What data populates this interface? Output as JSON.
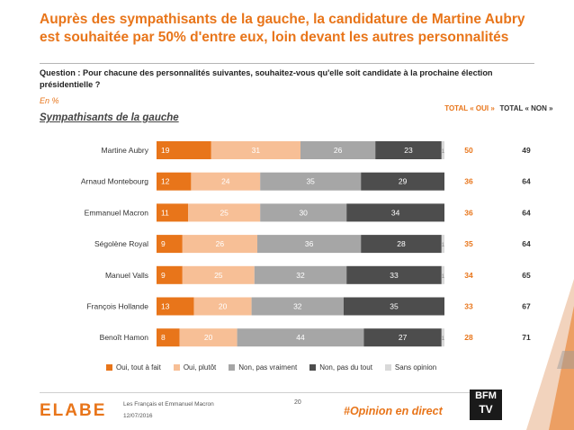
{
  "header": {
    "title": "Auprès des sympathisants de la gauche, la candidature de Martine Aubry est souhaitée par 50% d'entre eux, loin devant les autres personnalités",
    "question": "Question : Pour chacune des personnalités suivantes, souhaitez-vous qu'elle soit candidate à la prochaine élection présidentielle ?",
    "unit": "En %",
    "subtitle": "Sympathisants de la gauche"
  },
  "columns": {
    "oui_label": "TOTAL « OUI »",
    "non_label": "TOTAL « NON »"
  },
  "chart_data": {
    "type": "bar",
    "orientation": "horizontal-stacked-100",
    "categories": [
      "Martine Aubry",
      "Arnaud Montebourg",
      "Emmanuel Macron",
      "Ségolène Royal",
      "Manuel Valls",
      "François Hollande",
      "Benoît Hamon"
    ],
    "series": [
      {
        "name": "Oui, tout à fait",
        "color": "#e8751a",
        "values": [
          19,
          12,
          11,
          9,
          9,
          13,
          8
        ]
      },
      {
        "name": "Oui, plutôt",
        "color": "#f7bf96",
        "values": [
          31,
          24,
          25,
          26,
          25,
          20,
          20
        ]
      },
      {
        "name": "Non, pas vraiment",
        "color": "#a6a6a6",
        "values": [
          26,
          35,
          30,
          36,
          32,
          32,
          44
        ]
      },
      {
        "name": "Non, pas du tout",
        "color": "#4d4d4d",
        "values": [
          23,
          29,
          34,
          28,
          33,
          35,
          27
        ]
      },
      {
        "name": "Sans opinion",
        "color": "#d9d9d9",
        "values": [
          1,
          0,
          0,
          1,
          1,
          0,
          1
        ]
      }
    ],
    "total_oui": [
      50,
      36,
      36,
      35,
      34,
      33,
      28
    ],
    "total_non": [
      49,
      64,
      64,
      64,
      65,
      67,
      71
    ],
    "xlim": [
      0,
      100
    ],
    "grid": false,
    "legend": "bottom"
  },
  "footer": {
    "logo": "ELABE",
    "line1": "Les Français et Emmanuel Macron",
    "line2": "12/07/2016",
    "page": "20",
    "hashtag": "#Opinion en direct",
    "bfm_top": "BFM",
    "bfm_bottom": "TV"
  }
}
